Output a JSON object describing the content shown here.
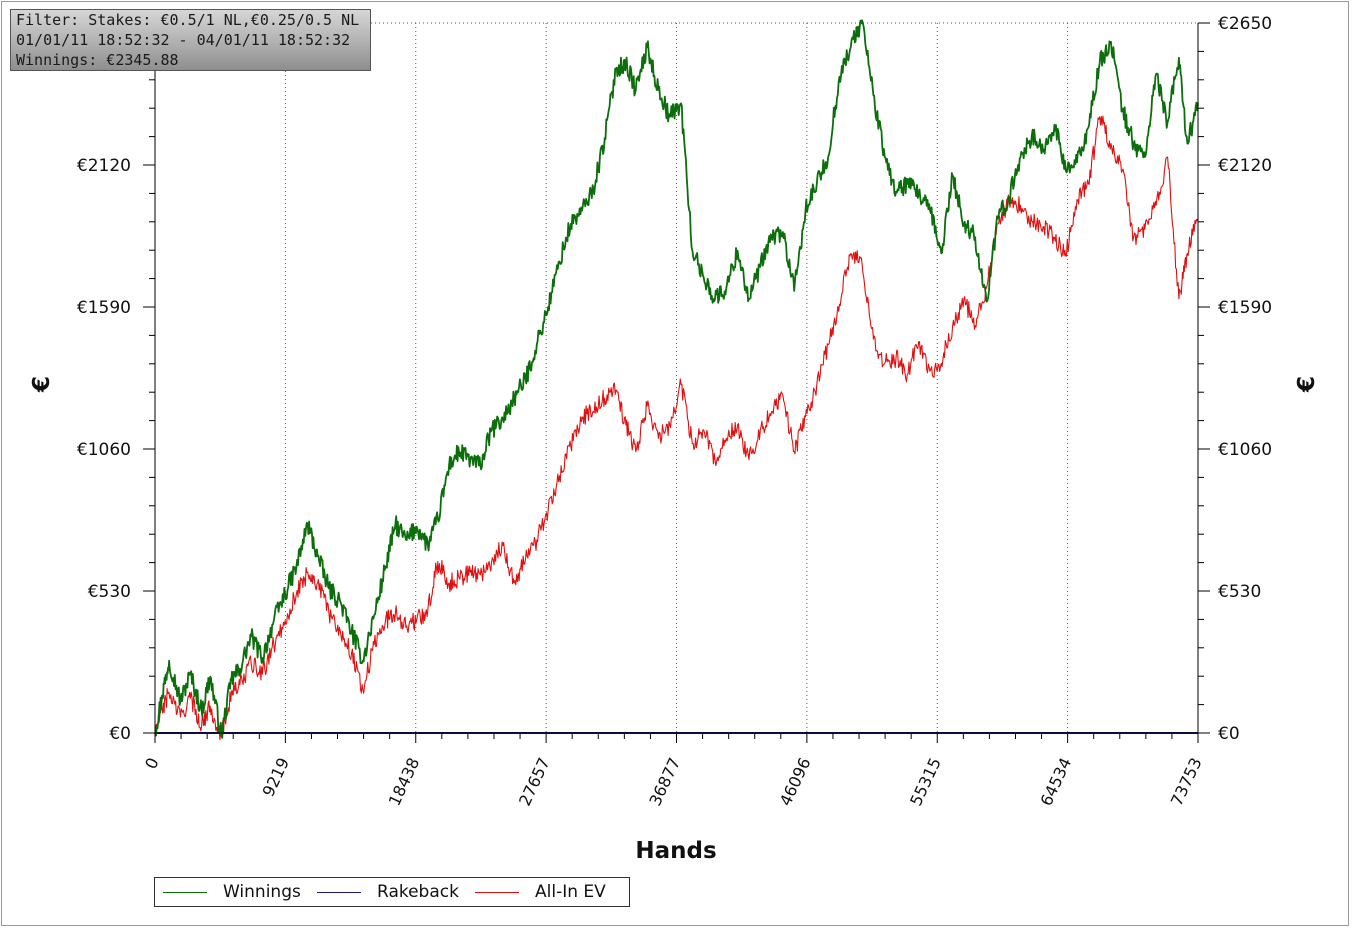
{
  "window": {
    "filter_line": "Filter: Stakes: €0.5/1 NL,€0.25/0.5 NL",
    "date_line": "01/01/11 18:52:32 - 04/01/11 18:52:32",
    "winnings_line": "Winnings: €2345.88"
  },
  "chart_data": {
    "type": "line",
    "title": "",
    "xlabel": "Hands",
    "ylabel_left": "€",
    "ylabel_right": "€",
    "xlim": [
      0,
      73753
    ],
    "ylim": [
      0,
      2650
    ],
    "x_ticks": [
      0,
      9219,
      18438,
      27657,
      36877,
      46096,
      55315,
      64534,
      73753
    ],
    "y_ticks": [
      0,
      530,
      1060,
      1590,
      2120,
      2650
    ],
    "y_tick_labels": [
      "€0",
      "€530",
      "€1060",
      "€1590",
      "€2120",
      "€2650"
    ],
    "grid": true,
    "legend_position": "bottom-left",
    "series": [
      {
        "name": "Winnings",
        "color": "#0b6e0b",
        "x": [
          0,
          500,
          1000,
          1800,
          2500,
          3300,
          3900,
          4700,
          5400,
          6000,
          6800,
          7600,
          8400,
          9200,
          10000,
          10800,
          11500,
          12300,
          13100,
          13900,
          14700,
          15500,
          16300,
          17000,
          17800,
          18500,
          19300,
          20000,
          20800,
          21500,
          22300,
          23000,
          23800,
          24600,
          25400,
          26200,
          27000,
          27800,
          28600,
          29400,
          30200,
          31000,
          31800,
          32600,
          33300,
          34000,
          34800,
          35600,
          36400,
          37200,
          38000,
          38800,
          39600,
          40400,
          41200,
          42000,
          42800,
          43600,
          44400,
          45200,
          46000,
          46800,
          47600,
          48400,
          49200,
          50000,
          50800,
          51600,
          52400,
          53200,
          54000,
          54800,
          55600,
          56400,
          57200,
          58000,
          58800,
          59600,
          60400,
          61200,
          62000,
          62800,
          63600,
          64400,
          65200,
          66000,
          66800,
          67600,
          68400,
          69200,
          70000,
          70800,
          71600,
          72400,
          73000,
          73753
        ],
        "values": [
          0,
          140,
          270,
          120,
          220,
          80,
          210,
          -10,
          200,
          240,
          360,
          280,
          420,
          520,
          620,
          780,
          660,
          540,
          490,
          380,
          270,
          440,
          620,
          780,
          720,
          770,
          700,
          800,
          1000,
          1050,
          1020,
          1000,
          1130,
          1170,
          1250,
          1320,
          1450,
          1590,
          1760,
          1900,
          1950,
          2030,
          2220,
          2480,
          2500,
          2400,
          2560,
          2400,
          2300,
          2350,
          1800,
          1700,
          1620,
          1660,
          1800,
          1620,
          1740,
          1850,
          1870,
          1650,
          1950,
          2050,
          2150,
          2450,
          2560,
          2660,
          2380,
          2150,
          2020,
          2050,
          2010,
          1950,
          1790,
          2080,
          1900,
          1850,
          1610,
          1920,
          2000,
          2150,
          2230,
          2170,
          2270,
          2100,
          2130,
          2260,
          2500,
          2580,
          2330,
          2200,
          2150,
          2460,
          2280,
          2520,
          2200,
          2350
        ]
      },
      {
        "name": "Rakeback",
        "color": "#1a1a7a",
        "x": [
          0,
          73753
        ],
        "values": [
          0,
          0
        ]
      },
      {
        "name": "All-In EV",
        "color": "#e01010",
        "x": [
          0,
          500,
          1000,
          1800,
          2500,
          3300,
          3900,
          4700,
          5400,
          6000,
          6800,
          7600,
          8400,
          9200,
          10000,
          10800,
          11500,
          12300,
          13100,
          13900,
          14700,
          15500,
          16300,
          17000,
          17800,
          18500,
          19300,
          20000,
          20800,
          21500,
          22300,
          23000,
          23800,
          24600,
          25400,
          26200,
          27000,
          27800,
          28600,
          29400,
          30200,
          31000,
          31800,
          32600,
          33300,
          34000,
          34800,
          35600,
          36400,
          37200,
          38000,
          38800,
          39600,
          40400,
          41200,
          42000,
          42800,
          43600,
          44400,
          45200,
          46000,
          46800,
          47600,
          48400,
          49200,
          50000,
          50800,
          51600,
          52400,
          53200,
          54000,
          54800,
          55600,
          56400,
          57200,
          58000,
          58800,
          59600,
          60400,
          61200,
          62000,
          62800,
          63600,
          64400,
          65200,
          66000,
          66800,
          67600,
          68400,
          69200,
          70000,
          70800,
          71600,
          72400,
          73000,
          73753
        ],
        "values": [
          0,
          90,
          150,
          60,
          130,
          30,
          100,
          -10,
          150,
          180,
          260,
          220,
          330,
          420,
          520,
          600,
          560,
          450,
          380,
          300,
          160,
          330,
          420,
          450,
          400,
          420,
          460,
          640,
          560,
          580,
          600,
          590,
          640,
          700,
          560,
          650,
          720,
          830,
          960,
          1070,
          1180,
          1200,
          1250,
          1280,
          1150,
          1050,
          1220,
          1100,
          1150,
          1300,
          1080,
          1130,
          1020,
          1100,
          1150,
          1020,
          1130,
          1200,
          1260,
          1050,
          1180,
          1300,
          1450,
          1600,
          1790,
          1750,
          1470,
          1380,
          1400,
          1340,
          1460,
          1350,
          1380,
          1520,
          1620,
          1520,
          1660,
          1900,
          1980,
          1970,
          1910,
          1890,
          1850,
          1780,
          1990,
          2050,
          2300,
          2200,
          2100,
          1850,
          1880,
          1970,
          2150,
          1620,
          1790,
          1920
        ]
      }
    ]
  }
}
